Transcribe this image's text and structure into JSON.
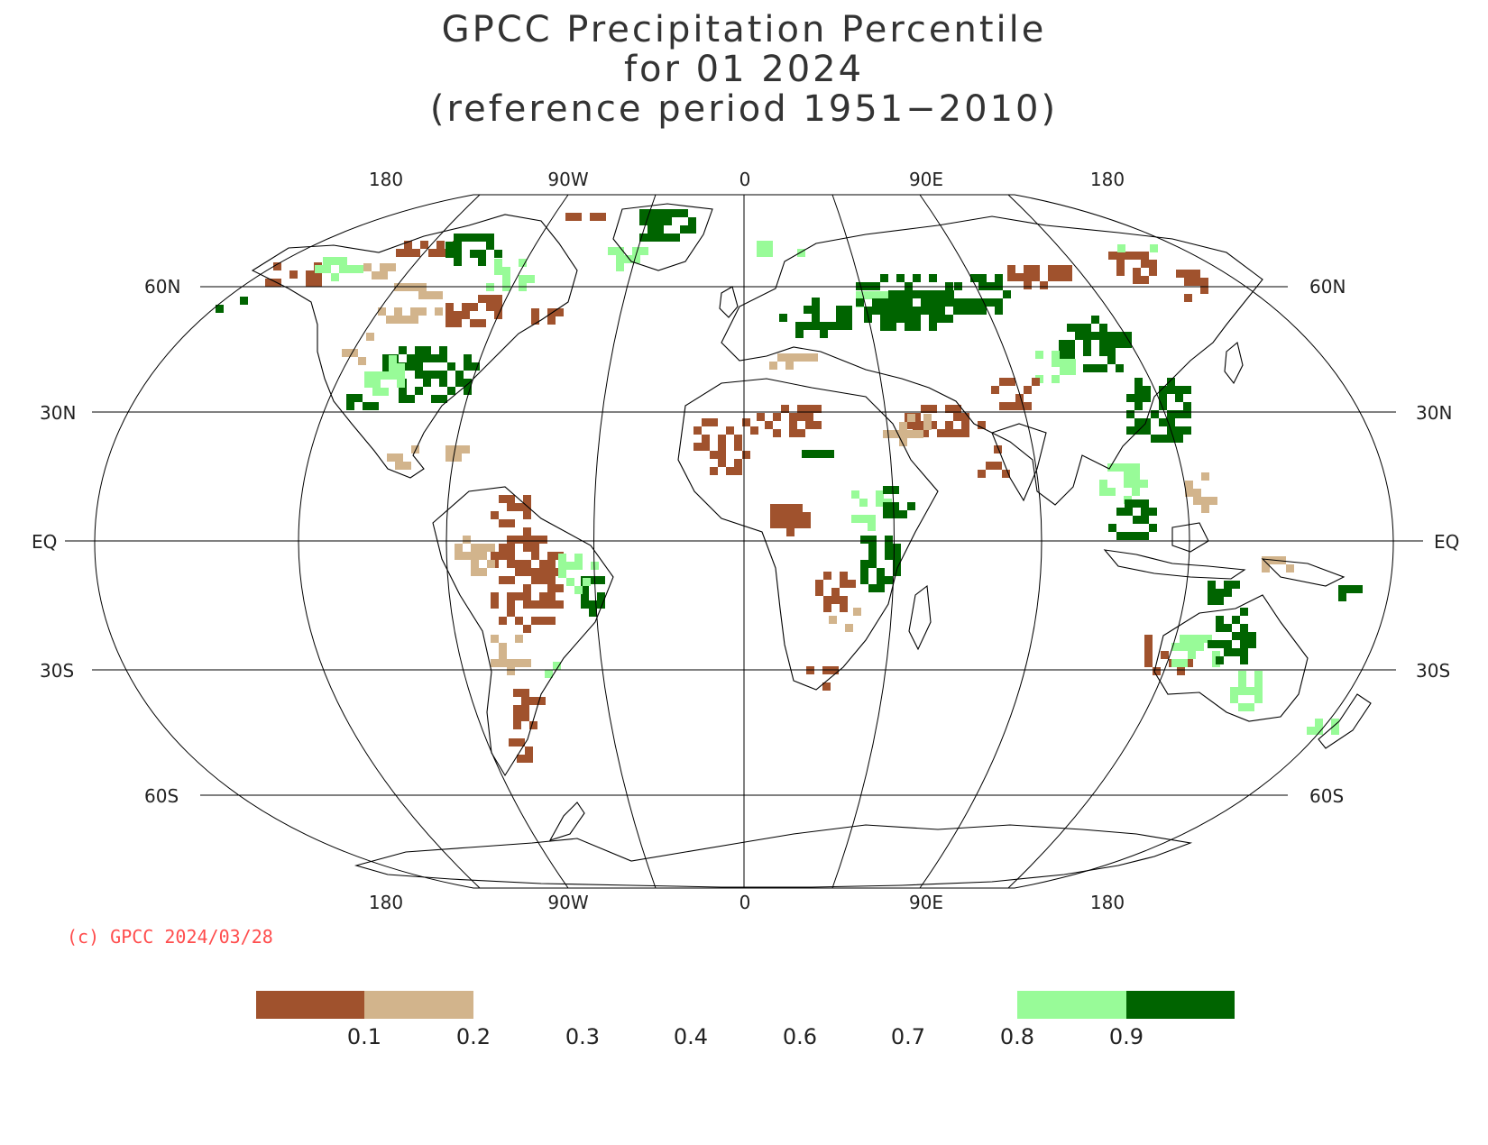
{
  "title": {
    "line1": "GPCC Precipitation Percentile",
    "line2": "for 01 2024",
    "line3": "(reference period 1951−2010)"
  },
  "longitude_labels": [
    "180",
    "90W",
    "0",
    "90E",
    "180"
  ],
  "latitude_labels": {
    "lat60n": "60N",
    "lat30n": "30N",
    "equator": "EQ",
    "lat30s": "30S",
    "lat60s": "60S"
  },
  "copyright": "(c) GPCC 2024/03/28",
  "legend": {
    "tick_labels": [
      "0.1",
      "0.2",
      "0.3",
      "0.4",
      "0.6",
      "0.7",
      "0.8",
      "0.9"
    ],
    "dry_colors": [
      {
        "range": "< 0.1",
        "color": "#a0522d"
      },
      {
        "range": "0.1 - 0.2",
        "color": "#d2b48c"
      }
    ],
    "wet_colors": [
      {
        "range": "0.8 - 0.9",
        "color": "#98fb98"
      },
      {
        "range": "> 0.9",
        "color": "#006400"
      }
    ]
  },
  "palette": {
    "very_dry": "#a0522d",
    "dry": "#d2b48c",
    "wet": "#98fb98",
    "very_wet": "#006400",
    "copyright": "#ff4d4d"
  }
}
